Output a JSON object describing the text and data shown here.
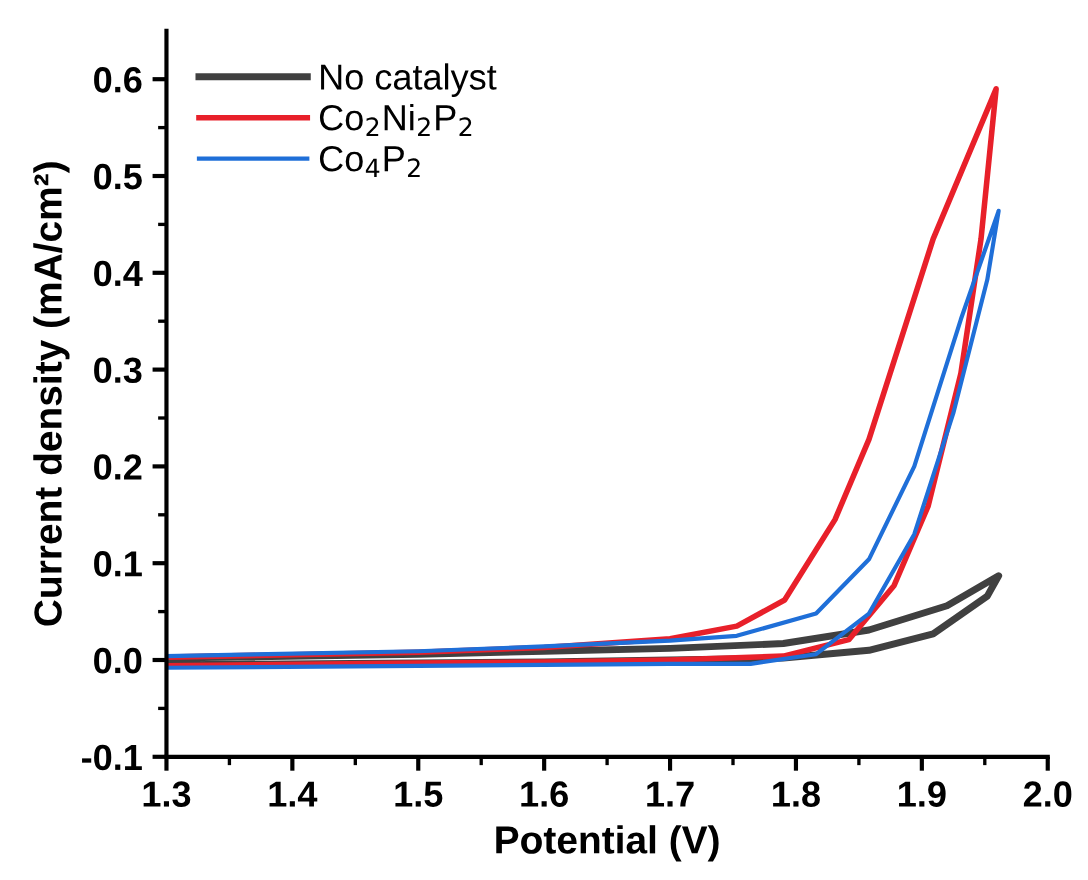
{
  "chart_data": {
    "type": "line",
    "xlabel": "Potential (V)",
    "ylabel": "Current density (mA/cm²)",
    "xlim": [
      1.3,
      2.0
    ],
    "ylim": [
      -0.1,
      0.65
    ],
    "xticks": [
      1.3,
      {
        "value": 1.35,
        "label": null
      },
      1.4,
      {
        "value": 1.45,
        "label": null
      },
      1.5,
      {
        "value": 1.55,
        "label": null
      },
      1.6,
      {
        "value": 1.65,
        "label": null
      },
      1.7,
      {
        "value": 1.75,
        "label": null
      },
      1.8,
      {
        "value": 1.85,
        "label": null
      },
      1.9,
      {
        "value": 1.95,
        "label": null
      },
      {
        "value": 2.0,
        "label": "2.0"
      }
    ],
    "yticks": [
      -0.1,
      {
        "value": -0.05,
        "label": null
      },
      {
        "value": 0.0,
        "label": "0.0"
      },
      {
        "value": 0.05,
        "label": null
      },
      0.1,
      {
        "value": 0.15,
        "label": null
      },
      0.2,
      {
        "value": 0.25,
        "label": null
      },
      0.3,
      {
        "value": 0.35,
        "label": null
      },
      0.4,
      {
        "value": 0.45,
        "label": null
      },
      0.5,
      {
        "value": 0.55,
        "label": null
      },
      0.6
    ],
    "legend": "top left",
    "grid": false,
    "marker": "none",
    "line_style": "solid",
    "series": [
      {
        "name": "No catalyst",
        "color": "#404040",
        "x": [
          1.3,
          1.5,
          1.6,
          1.7,
          1.79,
          1.858,
          1.909,
          1.952,
          1.961,
          1.92,
          1.858,
          1.79,
          1.7,
          1.6,
          1.5,
          1.3
        ],
        "values": [
          -0.005,
          -0.003,
          -0.002,
          0.0,
          0.002,
          0.01,
          0.027,
          0.066,
          0.087,
          0.056,
          0.031,
          0.017,
          0.012,
          0.009,
          0.006,
          0.002
        ]
      },
      {
        "name": "Co$_{2}$Ni$_{2}$P$_{2}$",
        "color": "#e8202a",
        "x": [
          1.3,
          1.5,
          1.6,
          1.7,
          1.79,
          1.842,
          1.878,
          1.905,
          1.931,
          1.947,
          1.959,
          1.909,
          1.858,
          1.831,
          1.791,
          1.753,
          1.7,
          1.6,
          1.5,
          1.3
        ],
        "values": [
          -0.006,
          -0.003,
          -0.002,
          0.0,
          0.004,
          0.021,
          0.077,
          0.159,
          0.296,
          0.435,
          0.59,
          0.435,
          0.228,
          0.145,
          0.062,
          0.035,
          0.022,
          0.013,
          0.008,
          0.003
        ]
      },
      {
        "name": "Co$_{4}$P$_{2}$",
        "color": "#1f6fd8",
        "x": [
          1.3,
          1.5,
          1.6,
          1.7,
          1.764,
          1.816,
          1.858,
          1.894,
          1.925,
          1.952,
          1.961,
          1.931,
          1.894,
          1.858,
          1.816,
          1.753,
          1.7,
          1.6,
          1.5,
          1.3
        ],
        "values": [
          -0.008,
          -0.006,
          -0.005,
          -0.004,
          -0.004,
          0.006,
          0.048,
          0.13,
          0.255,
          0.393,
          0.464,
          0.352,
          0.2,
          0.104,
          0.048,
          0.025,
          0.02,
          0.014,
          0.009,
          0.004
        ]
      }
    ]
  }
}
